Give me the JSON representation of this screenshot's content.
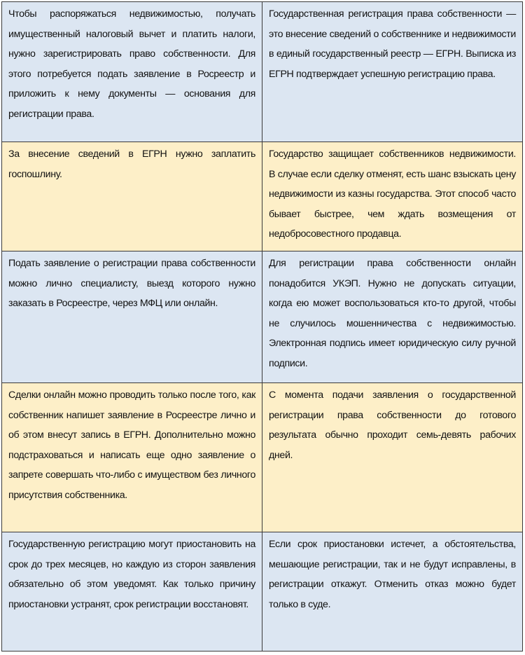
{
  "colors": {
    "blue_row": "#dce6f2",
    "yellow_row": "#fdefc8"
  },
  "rows": [
    {
      "left": "Чтобы распоряжаться недвижимостью, получать имущественный налоговый вычет и платить налоги, нужно зарегистрировать право собственности. Для этого потребуется подать заявление в Росреестр и приложить к нему документы — основания для регистрации права.",
      "right": "Государственная регистрация права собственности — это внесение сведений о собственнике и недвижимости в единый государственный реестр — ЕГРН. Выписка из ЕГРН подтверждает успешную регистрацию права."
    },
    {
      "left": "За внесение сведений в ЕГРН нужно заплатить госпошлину.",
      "right": "Государство защищает собственников недвижимости. В случае если сделку отменят, есть шанс взыскать цену недвижимости из казны государства. Этот способ часто бывает быстрее, чем ждать возмещения от недобросовестного продавца."
    },
    {
      "left": "Подать заявление о регистрации права собственности можно лично специалисту, выезд которого нужно заказать в Росреестре, через МФЦ или онлайн.",
      "right": "Для регистрации права собственности онлайн понадобится УКЭП. Нужно не допускать ситуации, когда ею может воспользоваться кто-то другой, чтобы не случилось мошенничества с недвижимостью. Электронная подпись имеет юридическую силу ручной подписи."
    },
    {
      "left": "Сделки онлайн можно проводить только после того, как собственник напишет заявление в Росреестре лично и об этом внесут запись в ЕГРН. Дополнительно можно подстраховаться и написать еще одно заявление о запрете совершать что-либо с имуществом без личного присутствия собственника.",
      "right": "С момента подачи заявления о государственной регистрации права собственности до готового результата обычно проходит семь-девять рабочих дней."
    },
    {
      "left": "Государственную регистрацию могут приостановить на срок до трех месяцев, но каждую из сторон заявления обязательно об этом уведомят. Как только причину приостановки устранят, срок регистрации восстановят.",
      "right": "Если срок приостановки истечет, а обстоятельства, мешающие регистрации, так и не будут исправлены, в регистрации откажут. Отменить отказ можно будет только в суде."
    }
  ]
}
